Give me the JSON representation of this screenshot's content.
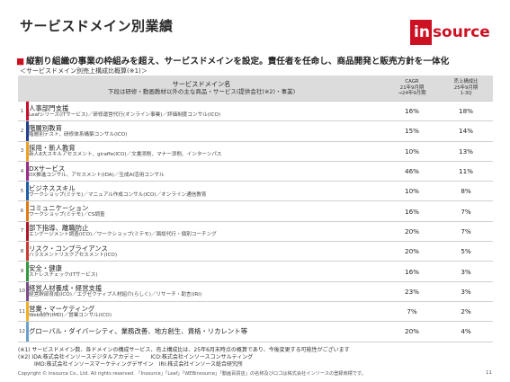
{
  "title": "サービスドメイン別業績",
  "logo": {
    "part1": "in",
    "part2": "source"
  },
  "headline": "縦割り組織の事業の枠組みを超え、サービスドメインを設定。責任者を任命し、商品開発と販売方針を一体化",
  "subhead": "＜サービスドメイン別売上構成比概算(※1)＞",
  "table": {
    "header": {
      "domain_main": "サービスドメイン名",
      "domain_sub": "下段は研修・動画教材以外の主な商品・サービス(提供会社(※2)・事業)",
      "cagr_1": "CAGR",
      "cagr_2": "21年9月期",
      "cagr_3": "→24年9月期",
      "share_1": "売上構成比",
      "share_2": "25年9月期",
      "share_3": "1-3Q"
    },
    "rows": [
      {
        "no": "1",
        "color": "#c8102e",
        "name": "人事部門支援",
        "desc": "Leafシリーズ(ITサービス)／研修運営代行(オンライン事業)／評価制度コンサル(ICO)",
        "cagr": "16%",
        "share": "18%"
      },
      {
        "no": "2",
        "color": "#1f3f8f",
        "name": "階層別教育",
        "desc": "階層別テスト、研修体系構築コンサル(ICO)",
        "cagr": "15%",
        "share": "14%"
      },
      {
        "no": "3",
        "color": "#f0a020",
        "name": "採用・新人教育",
        "desc": "新人8大スキルアセスメント、giraffe(ICO)／文書添削、マナー添削、インターンパス",
        "cagr": "10%",
        "share": "13%"
      },
      {
        "no": "4",
        "color": "#9a2a8a",
        "name": "DXサービス",
        "desc": "DX推進コンサル、アセスメント(IDA)／生成AI活用コンサル",
        "cagr": "46%",
        "share": "11%"
      },
      {
        "no": "5",
        "color": "#1a5fa8",
        "name": "ビジネススキル",
        "desc": "ワークショップ(ミテモ)／マニュアル作成コンサル(ICO)／オンライン通信教育",
        "cagr": "10%",
        "share": "8%"
      },
      {
        "no": "6",
        "color": "#e07a10",
        "name": "コミュニケーション",
        "desc": "ワークショップ(ミテモ)／CS調査",
        "cagr": "16%",
        "share": "7%"
      },
      {
        "no": "7",
        "color": "#b0162a",
        "name": "部下指導、離職防止",
        "desc": "エンゲージメント調査(ICO)／ワークショップ(ミテモ)／面談代行・個別コーチング",
        "cagr": "20%",
        "share": "7%"
      },
      {
        "no": "8",
        "color": "#c83a2e",
        "name": "リスク・コンプライアンス",
        "desc": "ハラスメントリスクアセスメント(ICO)",
        "cagr": "20%",
        "share": "5%"
      },
      {
        "no": "9",
        "color": "#2e9a3c",
        "name": "安全・健康",
        "desc": "ストレスチェック(ITサービス)",
        "cagr": "16%",
        "share": "3%"
      },
      {
        "no": "10",
        "color": "#7a4a8a",
        "name": "経営人材養成・経営支援",
        "desc": "経営幹部育成(ICO)／エグゼクティブ人材紹介(らしく)／リサーチ・助言(IRI)",
        "cagr": "23%",
        "share": "3%"
      },
      {
        "no": "11",
        "color": "#f0b020",
        "name": "営業・マーケティング",
        "desc": "Web制作(IMD)／営業コンサル(ICO)",
        "cagr": "7%",
        "share": "2%"
      },
      {
        "no": "12",
        "color": "#6aa0cc",
        "name": "グローバル・ダイバーシティ、業務改善、地方創生、資格・リカレント等",
        "desc": "",
        "cagr": "20%",
        "share": "4%"
      }
    ]
  },
  "notes": {
    "n1": "(※1) サービスドメイン数、各ドメインの構成サービス、売上構成比は、25年6月末時点の概算であり、今後変更する可能性がございます",
    "n2": "(※2) IDA:株式会社インソースデジタルアカデミー　　ICO:株式会社インソースコンサルティング",
    "n3": "　　　IMD:株式会社インソースマーケティングデザイン　IRI:株式会社インソース総合研究所"
  },
  "copyright": "Copyright © Insource Co., Ltd. All rights reserved. 「Insource」「Leaf」「WEBinsource」「動画百貨店」の名称及びロゴは株式会社インソースの登録商標です。",
  "page_number": "11"
}
